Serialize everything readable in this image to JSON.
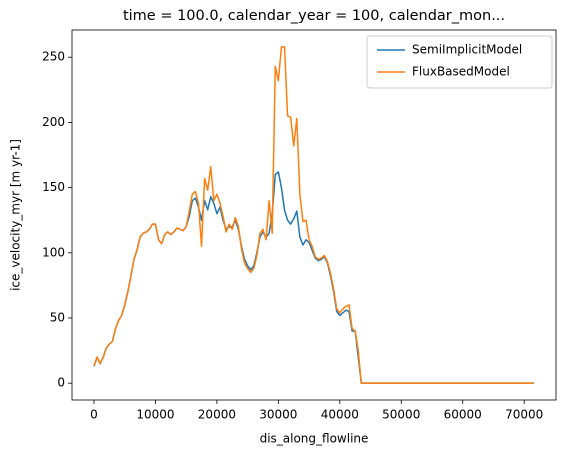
{
  "chart_data": {
    "type": "line",
    "title": "time = 100.0, calendar_year = 100, calendar_mon...",
    "xlabel": "dis_along_flowline",
    "ylabel": "ice_velocity_myr [m yr-1]",
    "x": [
      0,
      500,
      1000,
      1500,
      2000,
      2500,
      3000,
      3500,
      4000,
      4500,
      5000,
      5500,
      6000,
      6500,
      7000,
      7500,
      8000,
      8500,
      9000,
      9500,
      10000,
      10500,
      11000,
      11500,
      12000,
      12500,
      13000,
      13500,
      14000,
      14500,
      15000,
      15500,
      16000,
      16500,
      17000,
      17500,
      18000,
      18500,
      19000,
      19500,
      20000,
      20500,
      21000,
      21500,
      22000,
      22500,
      23000,
      23500,
      24000,
      24500,
      25000,
      25500,
      26000,
      26500,
      27000,
      27500,
      28000,
      28500,
      29000,
      29500,
      30000,
      30500,
      31000,
      31500,
      32000,
      32500,
      33000,
      33500,
      34000,
      34500,
      35000,
      35500,
      36000,
      36500,
      37000,
      37500,
      38000,
      38500,
      39000,
      39500,
      40000,
      40500,
      41000,
      41500,
      42000,
      42500,
      43000,
      43500,
      44000,
      71600
    ],
    "series": [
      {
        "name": "SemiImplicitModel",
        "color": "#1f77b4",
        "values": [
          13,
          20,
          15,
          20,
          27,
          30,
          32,
          42,
          48,
          52,
          60,
          70,
          82,
          95,
          102,
          112,
          115,
          116,
          118,
          122,
          122,
          110,
          107,
          114,
          116,
          114,
          116,
          119,
          118,
          117,
          120,
          128,
          140,
          142,
          135,
          125,
          140,
          133,
          143,
          138,
          130,
          135,
          125,
          118,
          120,
          120,
          125,
          118,
          105,
          95,
          90,
          87,
          90,
          100,
          112,
          116,
          112,
          115,
          130,
          160,
          162,
          150,
          133,
          125,
          122,
          126,
          132,
          112,
          106,
          110,
          108,
          102,
          96,
          94,
          95,
          97,
          92,
          82,
          70,
          55,
          52,
          54,
          56,
          55,
          40,
          40,
          20,
          0,
          0,
          0
        ]
      },
      {
        "name": "FluxBasedModel",
        "color": "#ff7f0e",
        "values": [
          13,
          20,
          15,
          20,
          27,
          30,
          32,
          42,
          48,
          52,
          60,
          70,
          82,
          95,
          102,
          112,
          115,
          116,
          118,
          122,
          122,
          110,
          107,
          114,
          116,
          114,
          116,
          119,
          118,
          117,
          120,
          132,
          145,
          147,
          138,
          105,
          157,
          148,
          166,
          140,
          145,
          138,
          128,
          116,
          122,
          118,
          127,
          120,
          103,
          92,
          88,
          85,
          88,
          98,
          115,
          118,
          110,
          140,
          115,
          243,
          232,
          258,
          258,
          205,
          204,
          182,
          203,
          145,
          124,
          125,
          110,
          105,
          97,
          95,
          96,
          98,
          93,
          84,
          72,
          57,
          54,
          57,
          59,
          60,
          42,
          40,
          25,
          0,
          0,
          0
        ]
      }
    ],
    "xlim": [
      -3580,
      75180
    ],
    "ylim": [
      -12.9,
      270.9
    ],
    "xticks": [
      0,
      10000,
      20000,
      30000,
      40000,
      50000,
      60000,
      70000
    ],
    "yticks": [
      0,
      50,
      100,
      150,
      200,
      250
    ],
    "legend": "upper right",
    "grid": false
  }
}
